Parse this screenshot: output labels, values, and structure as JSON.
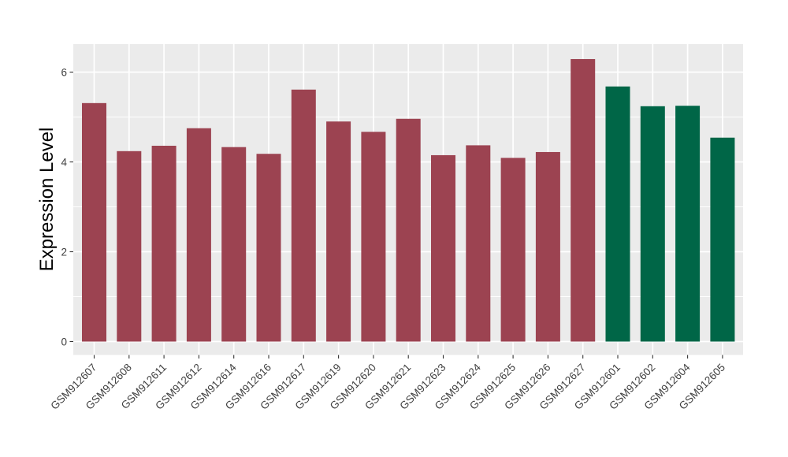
{
  "chart_data": {
    "type": "bar",
    "title": "",
    "xlabel": "",
    "ylabel": "Expression Level",
    "legend": "none",
    "grid": true,
    "panel_bg": "#EBEBEB",
    "grid_color": "#FFFFFF",
    "tick_color": "#333333",
    "axis_text_color": "#404040",
    "axis_title_color": "#000000",
    "ylim": [
      -0.29,
      6.62
    ],
    "yticks": [
      0,
      2,
      4,
      6
    ],
    "yticks_minor": [
      1,
      3,
      5
    ],
    "categories": [
      "GSM912607",
      "GSM912608",
      "GSM912611",
      "GSM912612",
      "GSM912614",
      "GSM912616",
      "GSM912617",
      "GSM912619",
      "GSM912620",
      "GSM912621",
      "GSM912623",
      "GSM912624",
      "GSM912625",
      "GSM912626",
      "GSM912627",
      "GSM912601",
      "GSM912602",
      "GSM912604",
      "GSM912605"
    ],
    "values": [
      5.31,
      4.24,
      4.36,
      4.75,
      4.33,
      4.18,
      5.61,
      4.9,
      4.67,
      4.96,
      4.15,
      4.37,
      4.09,
      4.22,
      6.29,
      5.68,
      5.24,
      5.25,
      4.54
    ],
    "bar_groups": [
      "A",
      "A",
      "A",
      "A",
      "A",
      "A",
      "A",
      "A",
      "A",
      "A",
      "A",
      "A",
      "A",
      "A",
      "A",
      "B",
      "B",
      "B",
      "B"
    ],
    "group_colors": {
      "A": "#9C4351",
      "B": "#006647"
    }
  }
}
